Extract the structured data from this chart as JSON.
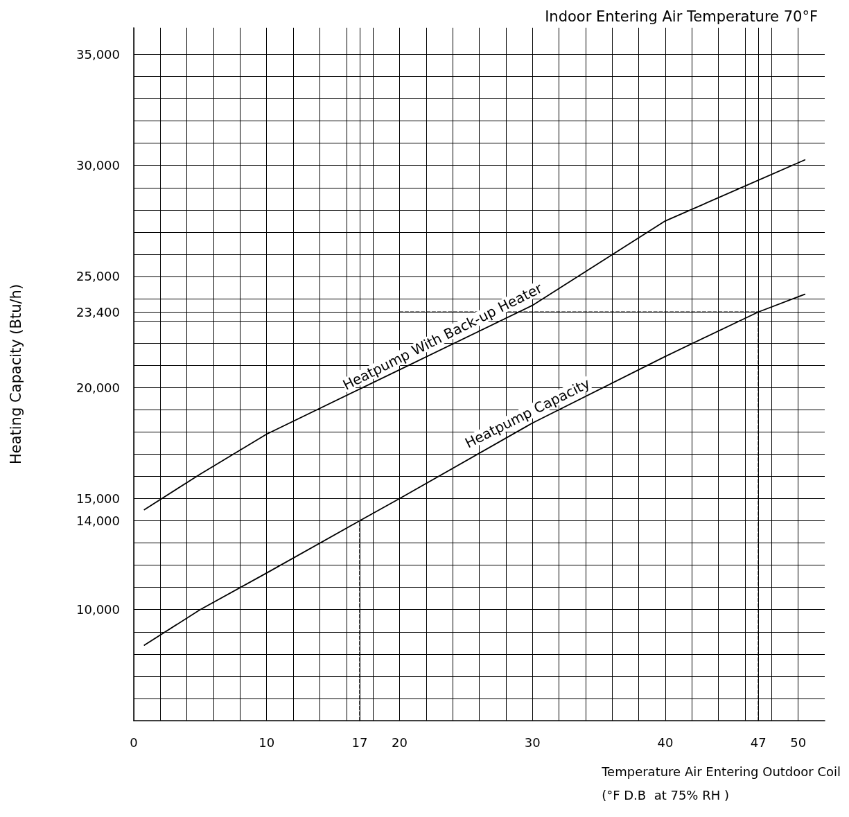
{
  "chart_data": {
    "type": "line",
    "title": "Indoor Entering Air Temperature 70°F",
    "xlabel": "Temperature Air Entering Outdoor Coil\n(°F D.B  at 75% RH )",
    "ylabel": "Heating Capacity (Btu/h)",
    "xlim": [
      0,
      52
    ],
    "ylim": [
      5000,
      36200
    ],
    "xticks": [
      0,
      {
        "value": 2,
        "label": null
      },
      {
        "value": 4,
        "label": null
      },
      {
        "value": 6,
        "label": null
      },
      {
        "value": 8,
        "label": null
      },
      10,
      {
        "value": 12,
        "label": null
      },
      {
        "value": 14,
        "label": null
      },
      {
        "value": 16,
        "label": null
      },
      17,
      {
        "value": 18,
        "label": null
      },
      20,
      {
        "value": 22,
        "label": null
      },
      {
        "value": 24,
        "label": null
      },
      {
        "value": 26,
        "label": null
      },
      {
        "value": 28,
        "label": null
      },
      30,
      {
        "value": 32,
        "label": null
      },
      {
        "value": 34,
        "label": null
      },
      {
        "value": 36,
        "label": null
      },
      {
        "value": 38,
        "label": null
      },
      40,
      {
        "value": 42,
        "label": null
      },
      {
        "value": 44,
        "label": null
      },
      {
        "value": 46,
        "label": null
      },
      47,
      {
        "value": 48,
        "label": null
      },
      50
    ],
    "yticks": [
      {
        "value": 6000,
        "label": null
      },
      {
        "value": 7000,
        "label": null
      },
      {
        "value": 8000,
        "label": null
      },
      {
        "value": 9000,
        "label": null
      },
      {
        "value": 10000,
        "label": "10,000"
      },
      {
        "value": 11000,
        "label": null
      },
      {
        "value": 12000,
        "label": null
      },
      {
        "value": 13000,
        "label": null
      },
      {
        "value": 14000,
        "label": "14,000"
      },
      {
        "value": 15000,
        "label": "15,000"
      },
      {
        "value": 16000,
        "label": null
      },
      {
        "value": 17000,
        "label": null
      },
      {
        "value": 18000,
        "label": null
      },
      {
        "value": 19000,
        "label": null
      },
      {
        "value": 20000,
        "label": "20,000"
      },
      {
        "value": 21000,
        "label": null
      },
      {
        "value": 22000,
        "label": null
      },
      {
        "value": 23000,
        "label": null
      },
      {
        "value": 23400,
        "label": "23,400"
      },
      {
        "value": 24000,
        "label": null
      },
      {
        "value": 25000,
        "label": "25,000"
      },
      {
        "value": 26000,
        "label": null
      },
      {
        "value": 27000,
        "label": null
      },
      {
        "value": 28000,
        "label": null
      },
      {
        "value": 29000,
        "label": null
      },
      {
        "value": 30000,
        "label": "30,000"
      },
      {
        "value": 31000,
        "label": null
      },
      {
        "value": 32000,
        "label": null
      },
      {
        "value": 33000,
        "label": null
      },
      {
        "value": 34000,
        "label": null
      },
      {
        "value": 35000,
        "label": "35,000"
      }
    ],
    "grid": true,
    "marker": "none",
    "line_style": "solid",
    "series": [
      {
        "color": "#000000",
        "x": [
          0.8,
          5,
          10,
          20,
          30,
          40,
          50.5
        ],
        "values": [
          14500,
          16100,
          17900,
          20800,
          23700,
          27500,
          30250
        ]
      },
      {
        "color": "#000000",
        "x": [
          0.8,
          5,
          10,
          17,
          20,
          30,
          40,
          47,
          50.5
        ],
        "values": [
          8400,
          10000,
          11650,
          14000,
          15000,
          18400,
          21400,
          23400,
          24200
        ]
      },
      {
        "color": "#000000",
        "line_style": "dashed",
        "x": [
          17,
          17
        ],
        "values": [
          5000,
          14000
        ]
      },
      {
        "color": "#000000",
        "line_style": "dashed",
        "x": [
          47,
          47
        ],
        "values": [
          5000,
          23400
        ]
      },
      {
        "color": "#000000",
        "line_style": "dashed",
        "x": [
          20,
          47
        ],
        "values": [
          23400,
          23400
        ]
      }
    ],
    "annotations": [
      {
        "text": "Heatpump With Back-up Heater",
        "x": 23.6,
        "y": 21850
      },
      {
        "text": "Heatpump Capacity",
        "x": 30,
        "y": 18400
      }
    ]
  }
}
